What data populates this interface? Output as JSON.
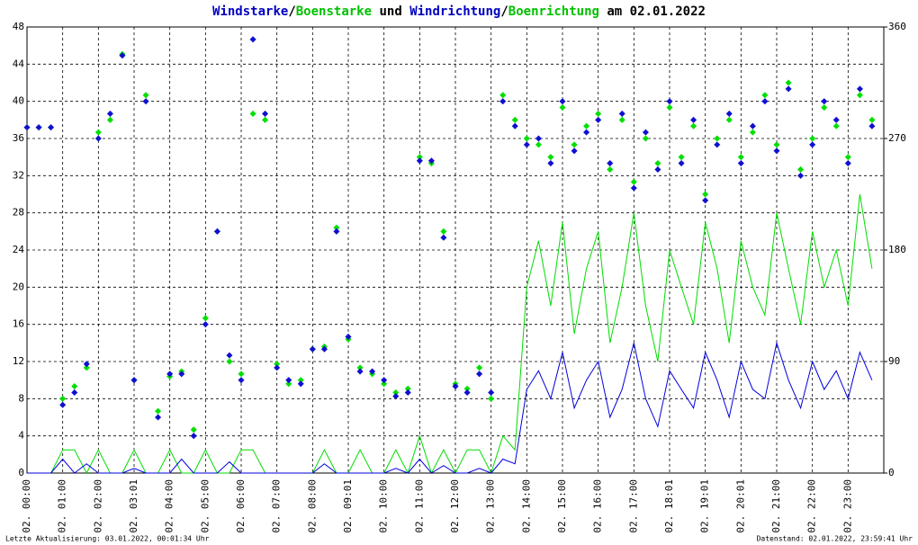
{
  "chart_data": {
    "type": "line",
    "title_parts": [
      {
        "text": "Windstarke",
        "color": "#0000c0"
      },
      {
        "text": "/",
        "color": "#000000"
      },
      {
        "text": "Boenstarke",
        "color": "#00c000"
      },
      {
        "text": " und ",
        "color": "#000000"
      },
      {
        "text": "Windrichtung",
        "color": "#0000c0"
      },
      {
        "text": "/",
        "color": "#000000"
      },
      {
        "text": "Boenrichtung",
        "color": "#00c000"
      },
      {
        "text": " am 02.01.2022",
        "color": "#000000"
      }
    ],
    "footer_left": "Letzte Aktualisierung: 03.01.2022, 00:01:34 Uhr",
    "footer_right": "Datenstand: 02.01.2022, 23:59:41 Uhr",
    "grid": true,
    "xlim": [
      0,
      24
    ],
    "xticks": [
      {
        "value": 0,
        "label": "02. 00:00"
      },
      {
        "value": 1,
        "label": "02. 01:00"
      },
      {
        "value": 2,
        "label": "02. 02:00"
      },
      {
        "value": 3,
        "label": "02. 03:01"
      },
      {
        "value": 4,
        "label": "02. 04:00"
      },
      {
        "value": 5,
        "label": "02. 05:00"
      },
      {
        "value": 6,
        "label": "02. 06:00"
      },
      {
        "value": 7,
        "label": "02. 07:00"
      },
      {
        "value": 8,
        "label": "02. 08:00"
      },
      {
        "value": 9,
        "label": "02. 09:01"
      },
      {
        "value": 10,
        "label": "02. 10:00"
      },
      {
        "value": 11,
        "label": "02. 11:00"
      },
      {
        "value": 12,
        "label": "02. 12:00"
      },
      {
        "value": 13,
        "label": "02. 13:00"
      },
      {
        "value": 14,
        "label": "02. 14:00"
      },
      {
        "value": 15,
        "label": "02. 15:00"
      },
      {
        "value": 16,
        "label": "02. 16:00"
      },
      {
        "value": 17,
        "label": "02. 17:00"
      },
      {
        "value": 18,
        "label": "02. 18:01"
      },
      {
        "value": 19,
        "label": "02. 19:01"
      },
      {
        "value": 20,
        "label": "02. 20:01"
      },
      {
        "value": 21,
        "label": "02. 21:00"
      },
      {
        "value": 22,
        "label": "02. 22:00"
      },
      {
        "value": 23,
        "label": "02. 23:00"
      }
    ],
    "ylim": [
      0,
      48
    ],
    "yticks": [
      0,
      4,
      8,
      12,
      16,
      20,
      24,
      28,
      32,
      36,
      40,
      44,
      48
    ],
    "y2lim": [
      0,
      360
    ],
    "y2ticks": [
      0,
      90,
      180,
      270,
      360
    ],
    "x": [
      0,
      0.33,
      0.67,
      1,
      1.33,
      1.67,
      2,
      2.33,
      2.67,
      3,
      3.33,
      3.67,
      4,
      4.33,
      4.67,
      5,
      5.33,
      5.67,
      6,
      6.33,
      6.67,
      7,
      7.33,
      7.67,
      8,
      8.33,
      8.67,
      9,
      9.33,
      9.67,
      10,
      10.33,
      10.67,
      11,
      11.33,
      11.67,
      12,
      12.33,
      12.67,
      13,
      13.33,
      13.67,
      14,
      14.33,
      14.67,
      15,
      15.33,
      15.67,
      16,
      16.33,
      16.67,
      17,
      17.33,
      17.67,
      18,
      18.33,
      18.67,
      19,
      19.33,
      19.67,
      20,
      20.33,
      20.67,
      21,
      21.33,
      21.67,
      22,
      22.33,
      22.67,
      23,
      23.33,
      23.67
    ],
    "series": [
      {
        "name": "Boenstarke",
        "color": "#00dd00",
        "kind": "line",
        "values": [
          0,
          0,
          0,
          2.5,
          2.5,
          0,
          2.5,
          0,
          0,
          2.5,
          0,
          0,
          2.5,
          0,
          0,
          2.5,
          0,
          0,
          2.5,
          2.5,
          0,
          0,
          0,
          0,
          0,
          2.5,
          0,
          0,
          2.5,
          0,
          0,
          2.5,
          0,
          4,
          0,
          2.5,
          0,
          2.5,
          2.5,
          0,
          4,
          2.5,
          20,
          25,
          18,
          27,
          15,
          22,
          26,
          14,
          20,
          28,
          18,
          12,
          24,
          20,
          16,
          27,
          22,
          14,
          25,
          20,
          17,
          28,
          22,
          16,
          26,
          20,
          24,
          18,
          30,
          22
        ]
      },
      {
        "name": "Windstarke",
        "color": "#0000dd",
        "kind": "line",
        "values": [
          0,
          0,
          0,
          1.5,
          0,
          1,
          0,
          0,
          0,
          0.5,
          0,
          0,
          0,
          1.5,
          0,
          0,
          0,
          1.2,
          0,
          0,
          0,
          0,
          0,
          0,
          0,
          1,
          0,
          0,
          0,
          0,
          0,
          0.5,
          0,
          1.5,
          0,
          0.8,
          0,
          0,
          0.5,
          0,
          1.5,
          1,
          9,
          11,
          8,
          13,
          7,
          10,
          12,
          6,
          9,
          14,
          8,
          5,
          11,
          9,
          7,
          13,
          10,
          6,
          12,
          9,
          8,
          14,
          10,
          7,
          12,
          9,
          11,
          8,
          13,
          10
        ]
      },
      {
        "name": "Boenrichtung",
        "color": "#00e000",
        "kind": "scatter",
        "axis": "y2",
        "values": [
          279,
          279,
          279,
          60,
          70,
          85,
          275,
          285,
          338,
          75,
          305,
          50,
          78,
          82,
          35,
          125,
          195,
          90,
          80,
          290,
          285,
          88,
          72,
          75,
          100,
          102,
          198,
          108,
          85,
          80,
          72,
          65,
          68,
          255,
          250,
          195,
          72,
          68,
          85,
          60,
          305,
          285,
          270,
          265,
          255,
          295,
          265,
          280,
          290,
          245,
          285,
          235,
          270,
          250,
          295,
          255,
          280,
          225,
          270,
          285,
          255,
          275,
          305,
          265,
          315,
          245,
          270,
          295,
          280,
          255,
          305,
          285
        ]
      },
      {
        "name": "Windrichtung",
        "color": "#1010d0",
        "kind": "scatter",
        "axis": "y2",
        "values": [
          279,
          279,
          279,
          55,
          65,
          88,
          270,
          290,
          337,
          75,
          300,
          45,
          80,
          80,
          30,
          120,
          195,
          95,
          75,
          350,
          290,
          85,
          75,
          72,
          100,
          100,
          195,
          110,
          82,
          82,
          75,
          62,
          65,
          252,
          252,
          190,
          70,
          65,
          80,
          65,
          300,
          280,
          265,
          270,
          250,
          300,
          260,
          275,
          285,
          250,
          290,
          230,
          275,
          245,
          300,
          250,
          285,
          220,
          265,
          290,
          250,
          280,
          300,
          260,
          310,
          240,
          265,
          300,
          285,
          250,
          310,
          280
        ]
      }
    ]
  }
}
